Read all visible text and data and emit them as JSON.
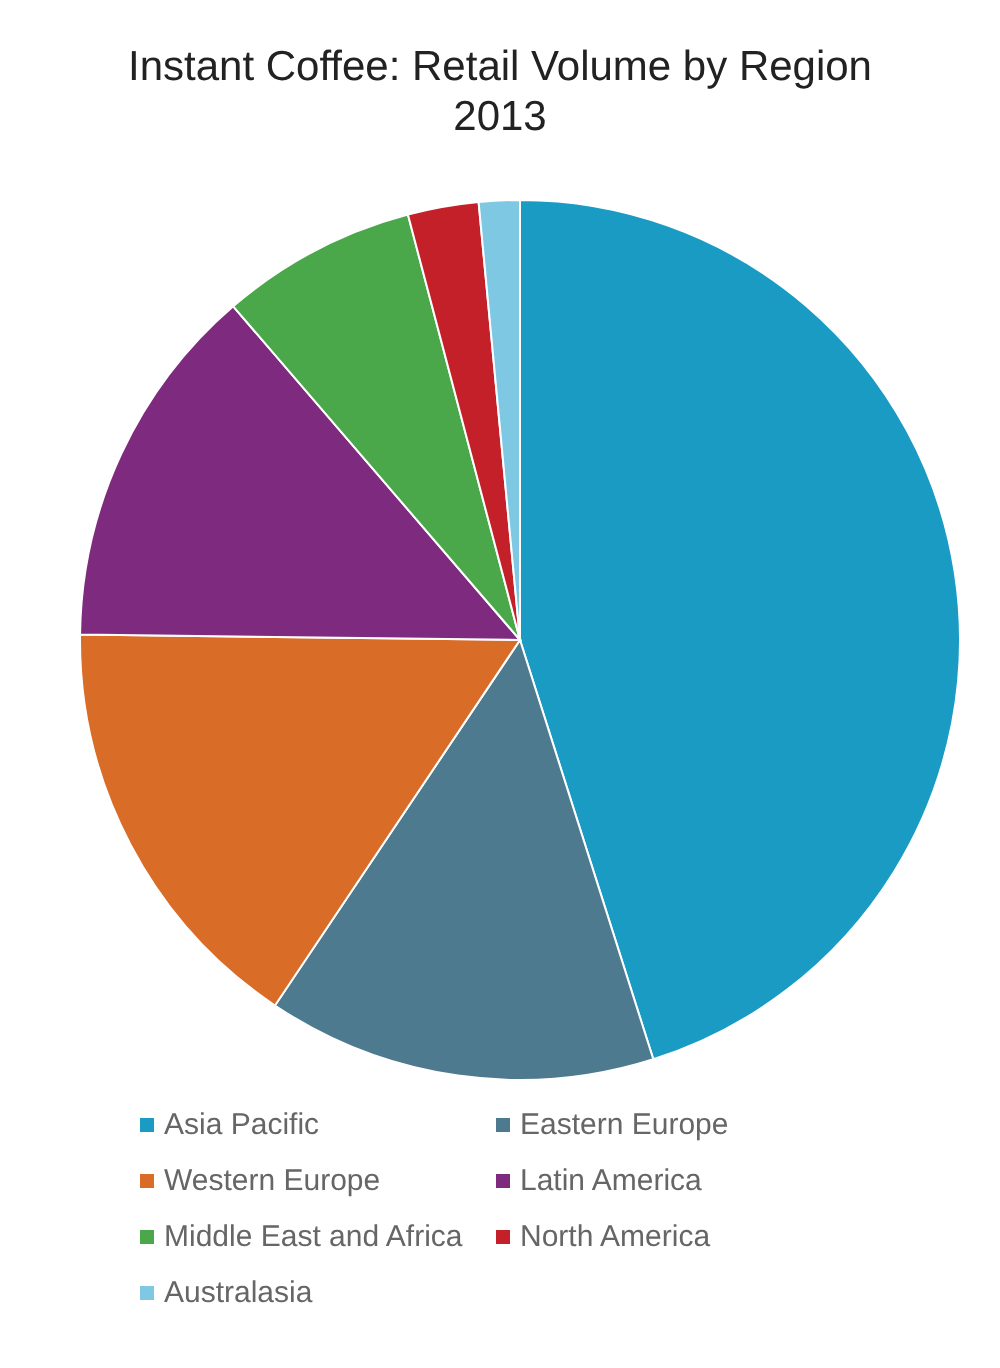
{
  "chart_data": {
    "type": "pie",
    "title": "Instant Coffee: Retail Volume by Region 2013",
    "categories": [
      "Asia Pacific",
      "Eastern Europe",
      "Western Europe",
      "Latin America",
      "Middle East and Africa",
      "North America",
      "Australasia"
    ],
    "values": [
      45.1,
      14.3,
      15.8,
      13.5,
      7.2,
      2.6,
      1.5
    ],
    "colors": [
      "#1a9bc4",
      "#4e7a8f",
      "#d96c27",
      "#7e2a7f",
      "#4aa84a",
      "#c4202a",
      "#7ec8e3"
    ],
    "legend": "bottom"
  }
}
